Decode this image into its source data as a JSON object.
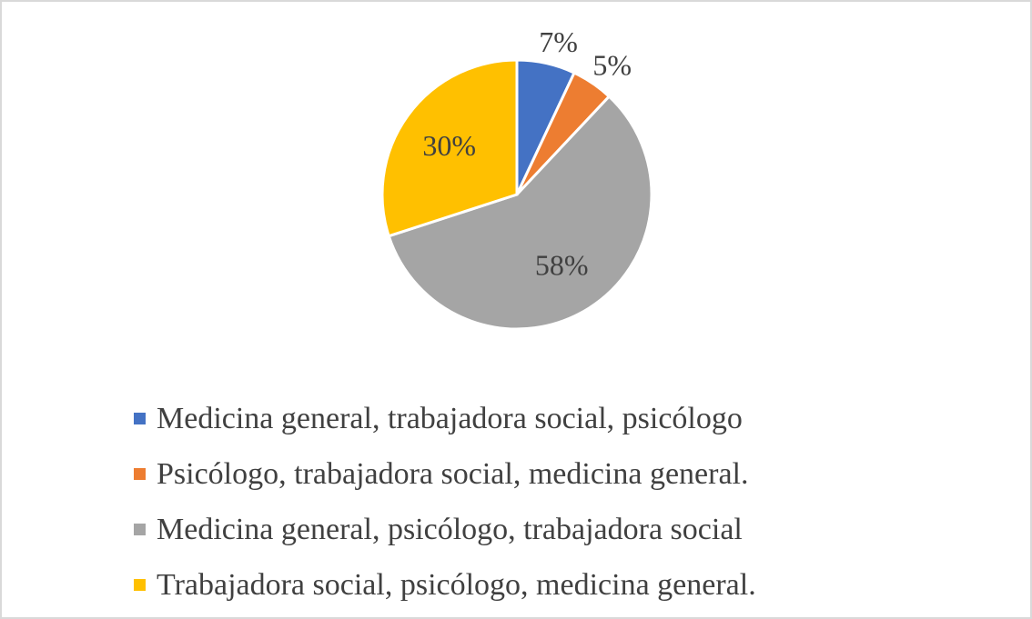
{
  "chart_data": {
    "type": "pie",
    "title": "",
    "legend_position": "bottom",
    "start_angle": "top, clockwise",
    "slices": [
      {
        "label": "Medicina general, trabajadora social, psicólogo",
        "value": 7,
        "data_label": "7%",
        "color": "#4472c4"
      },
      {
        "label": "Psicólogo, trabajadora social, medicina general.",
        "value": 5,
        "data_label": "5%",
        "color": "#ed7d31"
      },
      {
        "label": "Medicina general, psicólogo, trabajadora social",
        "value": 58,
        "data_label": "58%",
        "color": "#a5a5a5"
      },
      {
        "label": "Trabajadora social, psicólogo, medicina general.",
        "value": 30,
        "data_label": "30%",
        "color": "#ffc000"
      }
    ]
  }
}
